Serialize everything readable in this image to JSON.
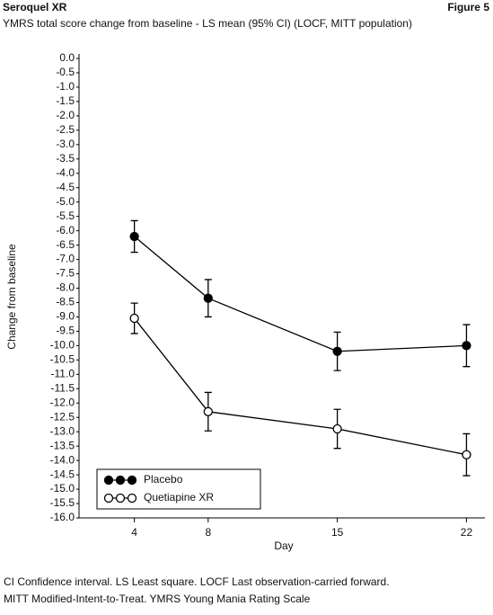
{
  "header": {
    "title": "Seroquel XR",
    "figure": "Figure 5"
  },
  "chart_data": {
    "type": "line",
    "title": "YMRS total score change from baseline - LS mean (95% CI) (LOCF, MITT population)",
    "x_label": "Day",
    "y_label": "Change from baseline",
    "x": [
      4,
      8,
      15,
      22
    ],
    "xlim": [
      1,
      23
    ],
    "xticks": [
      4,
      8,
      15,
      22
    ],
    "ylim": [
      -16,
      0
    ],
    "yticks": [
      {
        "value": 0,
        "label": "0.0"
      },
      -0.5,
      {
        "value": -1,
        "label": "-1.0"
      },
      -1.5,
      {
        "value": -2,
        "label": "-2.0"
      },
      -2.5,
      {
        "value": -3,
        "label": "-3.0"
      },
      -3.5,
      {
        "value": -4,
        "label": "-4.0"
      },
      -4.5,
      {
        "value": -5,
        "label": "-5.0"
      },
      -5.5,
      {
        "value": -6,
        "label": "-6.0"
      },
      -6.5,
      {
        "value": -7,
        "label": "-7.0"
      },
      -7.5,
      {
        "value": -8,
        "label": "-8.0"
      },
      -8.5,
      {
        "value": -9,
        "label": "-9.0"
      },
      -9.5,
      {
        "value": -10,
        "label": "-10.0"
      },
      -10.5,
      {
        "value": -11,
        "label": "-11.0"
      },
      -11.5,
      {
        "value": -12,
        "label": "-12.0"
      },
      -12.5,
      {
        "value": -13,
        "label": "-13.0"
      },
      -13.5,
      {
        "value": -14,
        "label": "-14.0"
      },
      -14.5,
      {
        "value": -15,
        "label": "-15.0"
      },
      -15.5,
      {
        "value": -16,
        "label": "-16.0"
      }
    ],
    "legend": "lower left",
    "series": [
      {
        "name": "Placebo",
        "color": "#000000",
        "marker": "filled",
        "values": [
          -6.2,
          -8.35,
          -10.2,
          -10.0
        ],
        "errors": [
          0.55,
          0.65,
          0.67,
          0.73
        ]
      },
      {
        "name": "Quetiapine XR",
        "color": "#000000",
        "marker": "open",
        "values": [
          -9.05,
          -12.3,
          -12.9,
          -13.8
        ],
        "errors": [
          0.53,
          0.67,
          0.68,
          0.73
        ]
      }
    ],
    "footnotes": [
      "CI Confidence interval. LS Least square. LOCF Last observation-carried forward.",
      "MITT Modified-Intent-to-Treat. YMRS Young Mania Rating Scale"
    ]
  }
}
